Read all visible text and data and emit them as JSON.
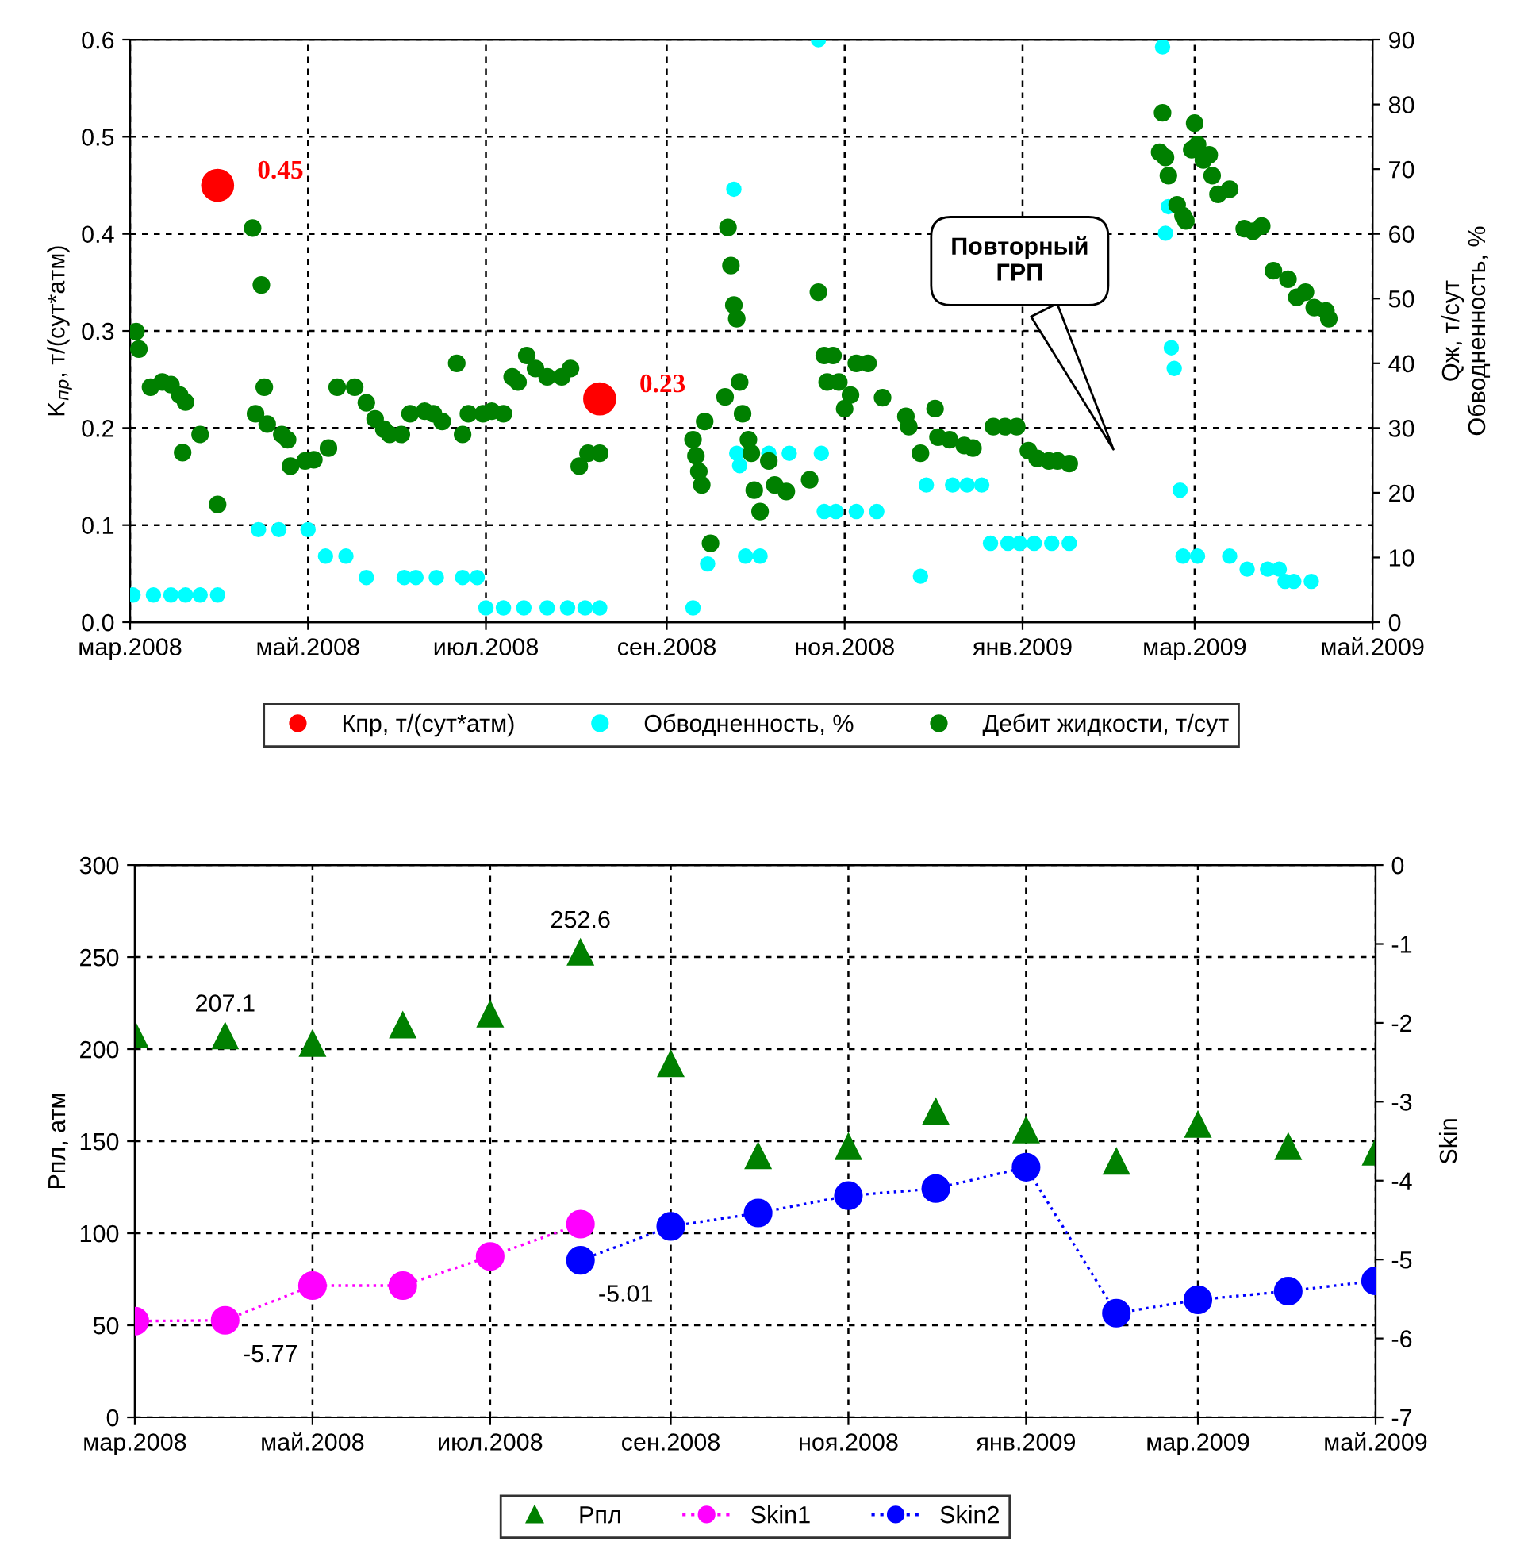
{
  "chart_data": [
    {
      "type": "scatter",
      "ylabel": "K$_{пр}$, т/(сут*атм)",
      "y2label": "Qж, т/сут\nОбводненность, %",
      "xlim": [
        "2008-03-01",
        "2009-05-01"
      ],
      "xticks": [
        {
          "value": "2008-03-01",
          "label": "мар.2008"
        },
        {
          "value": "2008-05-01",
          "label": "май.2008"
        },
        {
          "value": "2008-07-01",
          "label": "июл.2008"
        },
        {
          "value": "2008-09-01",
          "label": "сен.2008"
        },
        {
          "value": "2008-11-01",
          "label": "ноя.2008"
        },
        {
          "value": "2009-01-01",
          "label": "янв.2009"
        },
        {
          "value": "2009-03-01",
          "label": "мар.2009"
        },
        {
          "value": "2009-05-01",
          "label": "май.2009"
        }
      ],
      "ylim": [
        0,
        0.6
      ],
      "yticks": [
        {
          "value": 0,
          "label": "0.0"
        },
        0.1,
        0.2,
        0.3,
        0.4,
        0.5,
        0.6
      ],
      "y2lim": [
        0,
        90
      ],
      "y2ticks": [
        0,
        10,
        20,
        30,
        40,
        50,
        60,
        70,
        80,
        90
      ],
      "grid": true,
      "legend": "bottom",
      "marker": "circle",
      "annotations": [
        "Повторный\nГРП"
      ],
      "series": [
        {
          "name": "Кпр, т/(сут*атм)",
          "color": "#ff0000",
          "x": [
            "2008-03-31",
            "2008-08-09"
          ],
          "values": [
            0.45,
            0.23
          ],
          "value_labels": [
            "0.45",
            "0.23"
          ]
        },
        {
          "name": "Обводненность, %",
          "color": "#00ffff",
          "axis": "y2",
          "x": [
            "2008-03-02",
            "2008-03-09",
            "2008-03-15",
            "2008-03-20",
            "2008-03-25",
            "2008-03-31",
            "2008-04-14",
            "2008-04-21",
            "2008-05-01",
            "2008-05-07",
            "2008-05-14",
            "2008-05-21",
            "2008-06-03",
            "2008-06-07",
            "2008-06-14",
            "2008-06-23",
            "2008-06-28",
            "2008-07-01",
            "2008-07-07",
            "2008-07-14",
            "2008-07-22",
            "2008-07-29",
            "2008-08-04",
            "2008-08-09",
            "2008-09-10",
            "2008-09-15",
            "2008-09-24",
            "2008-09-25",
            "2008-09-26",
            "2008-09-28",
            "2008-10-03",
            "2008-10-06",
            "2008-10-13",
            "2008-10-23",
            "2008-10-24",
            "2008-10-25",
            "2008-10-29",
            "2008-11-05",
            "2008-11-12",
            "2008-11-27",
            "2008-11-29",
            "2008-12-08",
            "2008-12-13",
            "2008-12-18",
            "2008-12-21",
            "2008-12-27",
            "2008-12-31",
            "2009-01-05",
            "2009-01-11",
            "2009-01-17",
            "2009-02-18",
            "2009-02-19",
            "2009-02-20",
            "2009-02-21",
            "2009-02-22",
            "2009-02-24",
            "2009-02-25",
            "2009-03-02",
            "2009-03-13",
            "2009-03-19",
            "2009-03-26",
            "2009-03-30",
            "2009-04-01",
            "2009-04-04",
            "2009-04-10"
          ],
          "values": [
            4.2,
            4.2,
            4.2,
            4.2,
            4.2,
            4.2,
            14.3,
            14.3,
            14.3,
            10.2,
            10.2,
            6.9,
            6.9,
            6.9,
            6.9,
            6.9,
            6.9,
            2.2,
            2.2,
            2.2,
            2.2,
            2.2,
            2.2,
            2.2,
            2.2,
            9.0,
            66.9,
            26.1,
            24.2,
            10.2,
            10.2,
            26.1,
            26.1,
            90.0,
            26.1,
            17.1,
            17.1,
            17.1,
            17.1,
            7.1,
            21.2,
            21.2,
            21.2,
            21.2,
            12.2,
            12.2,
            12.2,
            12.2,
            12.2,
            12.2,
            88.9,
            60.1,
            64.2,
            42.4,
            39.2,
            20.4,
            10.2,
            10.2,
            10.2,
            8.2,
            8.2,
            8.2,
            6.3,
            6.3,
            6.3
          ]
        },
        {
          "name": "Дебит жидкости, т/сут",
          "color": "#008000",
          "axis": "y2",
          "x": [
            "2008-03-03",
            "2008-03-04",
            "2008-03-08",
            "2008-03-12",
            "2008-03-15",
            "2008-03-18",
            "2008-03-20",
            "2008-03-19",
            "2008-03-25",
            "2008-03-31",
            "2008-04-12",
            "2008-04-15",
            "2008-04-16",
            "2008-04-13",
            "2008-04-17",
            "2008-04-22",
            "2008-04-24",
            "2008-04-25",
            "2008-04-30",
            "2008-05-03",
            "2008-05-08",
            "2008-05-11",
            "2008-05-17",
            "2008-05-21",
            "2008-05-24",
            "2008-05-27",
            "2008-05-29",
            "2008-06-02",
            "2008-06-05",
            "2008-06-10",
            "2008-06-13",
            "2008-06-16",
            "2008-06-21",
            "2008-06-23",
            "2008-06-25",
            "2008-06-30",
            "2008-07-03",
            "2008-07-07",
            "2008-07-10",
            "2008-07-12",
            "2008-07-15",
            "2008-07-18",
            "2008-07-22",
            "2008-07-27",
            "2008-07-30",
            "2008-08-02",
            "2008-08-05",
            "2008-08-09",
            "2008-09-10",
            "2008-09-11",
            "2008-09-12",
            "2008-09-13",
            "2008-09-14",
            "2008-09-16",
            "2008-09-21",
            "2008-09-22",
            "2008-09-23",
            "2008-09-24",
            "2008-09-25",
            "2008-09-26",
            "2008-09-27",
            "2008-09-29",
            "2008-09-30",
            "2008-10-01",
            "2008-10-03",
            "2008-10-06",
            "2008-10-08",
            "2008-10-12",
            "2008-10-20",
            "2008-10-23",
            "2008-10-25",
            "2008-10-26",
            "2008-10-28",
            "2008-10-30",
            "2008-11-01",
            "2008-11-03",
            "2008-11-05",
            "2008-11-09",
            "2008-11-14",
            "2008-11-22",
            "2008-11-23",
            "2008-11-27",
            "2008-12-02",
            "2008-12-03",
            "2008-12-07",
            "2008-12-12",
            "2008-12-15",
            "2008-12-22",
            "2008-12-26",
            "2008-12-30",
            "2009-01-03",
            "2009-01-06",
            "2009-01-10",
            "2009-01-13",
            "2009-01-17",
            "2009-02-17",
            "2009-02-18",
            "2009-02-19",
            "2009-02-20",
            "2009-02-23",
            "2009-02-25",
            "2009-02-26",
            "2009-02-28",
            "2009-03-01",
            "2009-03-02",
            "2009-03-04",
            "2009-03-06",
            "2009-03-07",
            "2009-03-09",
            "2009-03-13",
            "2009-03-18",
            "2009-03-21",
            "2009-03-24",
            "2009-03-28",
            "2009-04-02",
            "2009-04-05",
            "2009-04-08",
            "2009-04-11",
            "2009-04-15",
            "2009-04-16"
          ],
          "values": [
            44.9,
            42.2,
            36.3,
            37.1,
            36.7,
            35.1,
            34.0,
            26.2,
            29.0,
            18.2,
            60.9,
            52.1,
            36.3,
            32.2,
            30.6,
            29.0,
            28.2,
            24.1,
            24.9,
            25.1,
            26.9,
            36.3,
            36.3,
            33.9,
            31.4,
            29.8,
            29.0,
            29.0,
            32.2,
            32.6,
            32.2,
            31.0,
            40.0,
            29.0,
            32.2,
            32.2,
            32.6,
            32.2,
            37.9,
            37.1,
            41.2,
            39.2,
            37.9,
            37.9,
            39.2,
            24.1,
            26.1,
            26.1,
            28.2,
            25.7,
            23.3,
            21.2,
            31.0,
            12.2,
            34.8,
            61.0,
            55.1,
            49.0,
            46.9,
            37.1,
            32.2,
            28.2,
            26.1,
            20.4,
            17.1,
            24.9,
            21.2,
            20.2,
            22.0,
            51.0,
            41.2,
            37.1,
            41.2,
            37.1,
            33.0,
            35.1,
            40.0,
            40.0,
            34.7,
            31.8,
            30.2,
            26.1,
            33.0,
            28.6,
            28.2,
            27.3,
            26.9,
            30.2,
            30.2,
            30.2,
            26.5,
            25.3,
            24.9,
            24.9,
            24.5,
            72.6,
            78.7,
            71.8,
            69.0,
            64.5,
            62.8,
            62.0,
            73.0,
            77.1,
            73.8,
            71.4,
            72.2,
            69.0,
            66.1,
            66.9,
            60.8,
            60.4,
            61.2,
            54.3,
            53.0,
            50.2,
            51.0,
            48.6,
            48.1,
            46.9
          ]
        }
      ]
    },
    {
      "type": "scatter",
      "ylabel": "Рпл, атм",
      "y2label": "Skin",
      "xlim": [
        "2008-03-01",
        "2009-05-01"
      ],
      "xticks": [
        {
          "value": "2008-03-01",
          "label": "мар.2008"
        },
        {
          "value": "2008-05-01",
          "label": "май.2008"
        },
        {
          "value": "2008-07-01",
          "label": "июл.2008"
        },
        {
          "value": "2008-09-01",
          "label": "сен.2008"
        },
        {
          "value": "2008-11-01",
          "label": "ноя.2008"
        },
        {
          "value": "2009-01-01",
          "label": "янв.2009"
        },
        {
          "value": "2009-03-01",
          "label": "мар.2009"
        },
        {
          "value": "2009-05-01",
          "label": "май.2009"
        }
      ],
      "ylim": [
        0,
        300
      ],
      "yticks": [
        0,
        50,
        100,
        150,
        200,
        250,
        300
      ],
      "y2lim": [
        -7,
        0
      ],
      "y2ticks": [
        -7,
        -6,
        -5,
        -4,
        -3,
        -2,
        -1,
        0
      ],
      "grid": true,
      "legend": "bottom",
      "series": [
        {
          "name": "Рпл",
          "type": "scatter",
          "marker": "triangle",
          "color": "#008000",
          "x": [
            "2008-03-01",
            "2008-04-01",
            "2008-05-01",
            "2008-06-01",
            "2008-07-01",
            "2008-08-01",
            "2008-09-01",
            "2008-10-01",
            "2008-11-01",
            "2008-12-01",
            "2009-01-01",
            "2009-02-01",
            "2009-03-01",
            "2009-04-01",
            "2009-05-01"
          ],
          "values": [
            208,
            207.1,
            203,
            213,
            219,
            252.6,
            192,
            142,
            147,
            166,
            156,
            139,
            159,
            147,
            144
          ],
          "value_labels": [
            null,
            "207.1",
            null,
            null,
            null,
            "252.6",
            null,
            null,
            null,
            null,
            null,
            null,
            null,
            null,
            null
          ]
        },
        {
          "name": "Skin1",
          "type": "line",
          "marker": "circle",
          "line_style": "dotted",
          "axis": "y2",
          "color": "#ff00ff",
          "x": [
            "2008-03-01",
            "2008-04-01",
            "2008-05-01",
            "2008-06-01",
            "2008-07-01",
            "2008-08-01"
          ],
          "values": [
            -5.78,
            -5.77,
            -5.33,
            -5.33,
            -4.96,
            -4.55
          ],
          "value_labels": [
            null,
            "-5.77",
            null,
            null,
            null,
            null
          ]
        },
        {
          "name": "Skin2",
          "type": "line",
          "marker": "circle",
          "line_style": "dotted",
          "axis": "y2",
          "color": "#0000ff",
          "x": [
            "2008-08-01",
            "2008-09-01",
            "2008-10-01",
            "2008-11-01",
            "2008-12-01",
            "2009-01-01",
            "2009-02-01",
            "2009-03-01",
            "2009-04-01",
            "2009-05-01"
          ],
          "values": [
            -5.01,
            -4.58,
            -4.41,
            -4.19,
            -4.1,
            -3.83,
            -5.68,
            -5.51,
            -5.4,
            -5.27
          ],
          "value_labels": [
            "-5.01",
            null,
            null,
            null,
            null,
            null,
            null,
            null,
            null,
            null
          ]
        }
      ]
    }
  ]
}
